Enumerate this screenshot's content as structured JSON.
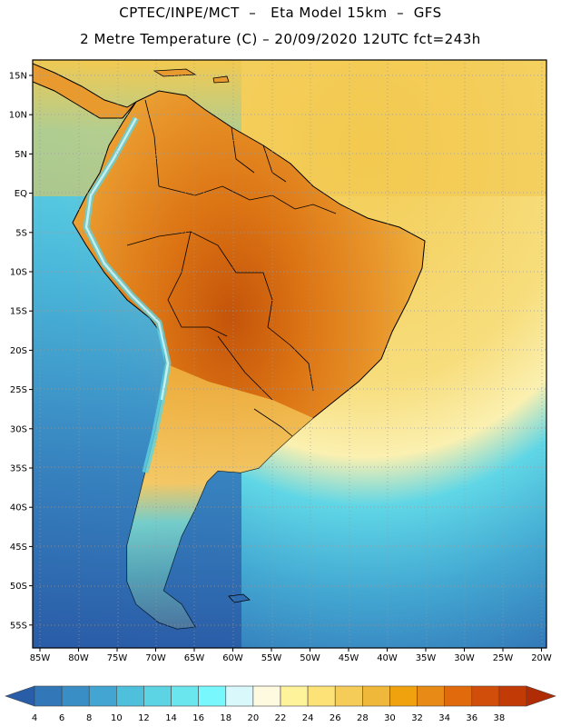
{
  "header": {
    "line1": "CPTEC/INPE/MCT  –   Eta Model 15km  –  GFS",
    "line2": "2 Metre Temperature (C) – 20/09/2020 12UTC fct=243h"
  },
  "lat_labels": [
    "15N",
    "10N",
    "5N",
    "EQ",
    "5S",
    "10S",
    "15S",
    "20S",
    "25S",
    "30S",
    "35S",
    "40S",
    "45S",
    "50S",
    "55S"
  ],
  "lon_labels": [
    "85W",
    "80W",
    "75W",
    "70W",
    "65W",
    "60W",
    "55W",
    "50W",
    "45W",
    "40W",
    "35W",
    "30W",
    "25W",
    "20W"
  ],
  "colorbar": {
    "labels": [
      "4",
      "6",
      "8",
      "10",
      "12",
      "14",
      "16",
      "18",
      "20",
      "22",
      "24",
      "26",
      "28",
      "30",
      "32",
      "34",
      "36",
      "38"
    ],
    "colors": [
      "#2a5da8",
      "#3277b8",
      "#3a8ec6",
      "#43a6d2",
      "#4fc0dc",
      "#5cd4e4",
      "#6ae6ee",
      "#78f8fc",
      "#d8f8fc",
      "#fefae0",
      "#fef29a",
      "#fce277",
      "#f6cc58",
      "#f0b83a",
      "#f0a20e",
      "#e88a16",
      "#e06a0c",
      "#d04e0a",
      "#c23a06",
      "#b02c04"
    ]
  },
  "palette": {
    "ocean_deep": "#2d61aa",
    "ocean_mid": "#3c8dc6",
    "ocean_cyan": "#4fc2dd",
    "ocean_warm": "#f6d56a",
    "ocean_hot": "#f2c23e",
    "land_hot": "#e89422",
    "land_hotter": "#dc6e12",
    "land_hottest": "#c4540a",
    "coast": "#000000",
    "grid": "#9a9a9a"
  }
}
